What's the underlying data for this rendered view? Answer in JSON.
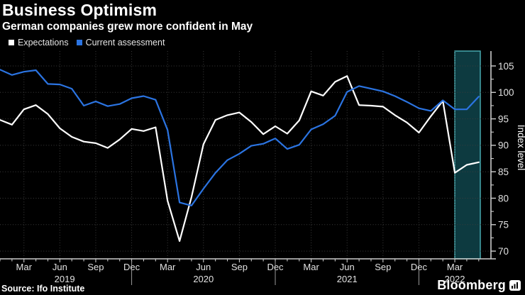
{
  "header": {
    "title": "Business Optimism",
    "subtitle": "German companies grew more confident in May"
  },
  "legend": [
    {
      "label": "Expectations",
      "color": "#ffffff"
    },
    {
      "label": "Current assessment",
      "color": "#2b74e2"
    }
  ],
  "source": "Source: Ifo Institute",
  "brand": {
    "name": "Bloomberg",
    "icon": "bar-chart-logo-icon"
  },
  "chart_data": {
    "type": "line",
    "title": "Business Optimism",
    "subtitle": "German companies grew more confident in May",
    "xlabel": "",
    "ylabel": "Index level",
    "ylim": [
      68,
      108
    ],
    "yticks": [
      70,
      75,
      80,
      85,
      90,
      95,
      100,
      105
    ],
    "grid": "dotted horizontal and vertical",
    "legend_position": "top-left",
    "months": [
      "2019-01",
      "2019-02",
      "2019-03",
      "2019-04",
      "2019-05",
      "2019-06",
      "2019-07",
      "2019-08",
      "2019-09",
      "2019-10",
      "2019-11",
      "2019-12",
      "2020-01",
      "2020-02",
      "2020-03",
      "2020-04",
      "2020-05",
      "2020-06",
      "2020-07",
      "2020-08",
      "2020-09",
      "2020-10",
      "2020-11",
      "2020-12",
      "2021-01",
      "2021-02",
      "2021-03",
      "2021-04",
      "2021-05",
      "2021-06",
      "2021-07",
      "2021-08",
      "2021-09",
      "2021-10",
      "2021-11",
      "2021-12",
      "2022-01",
      "2022-02",
      "2022-03",
      "2022-04",
      "2022-05"
    ],
    "series": [
      {
        "name": "Expectations",
        "color": "#ffffff",
        "values": [
          94.8,
          93.9,
          96.8,
          97.6,
          95.9,
          93.2,
          91.6,
          90.7,
          90.4,
          89.5,
          91.1,
          93.1,
          92.7,
          93.4,
          79.5,
          71.9,
          80.2,
          90.2,
          94.8,
          95.7,
          96.2,
          94.4,
          92.1,
          93.6,
          92.2,
          94.7,
          100.2,
          99.4,
          102.0,
          103.1,
          97.6,
          97.5,
          97.3,
          95.7,
          94.3,
          92.4,
          95.5,
          98.4,
          84.8,
          86.3,
          86.8
        ]
      },
      {
        "name": "Current assessment",
        "color": "#2b74e2",
        "values": [
          104.3,
          103.3,
          103.9,
          104.2,
          101.6,
          101.5,
          100.7,
          97.5,
          98.3,
          97.4,
          97.8,
          98.9,
          99.3,
          98.6,
          92.9,
          79.2,
          78.6,
          81.8,
          84.8,
          87.2,
          88.4,
          89.9,
          90.3,
          91.3,
          89.3,
          90.1,
          93.0,
          94.0,
          95.6,
          100.1,
          101.2,
          100.7,
          100.2,
          99.3,
          98.2,
          97.0,
          96.5,
          98.5,
          96.8,
          96.8,
          99.2
        ]
      }
    ],
    "xticks": [
      {
        "m": 2,
        "label": "Mar"
      },
      {
        "m": 5,
        "label": "Jun"
      },
      {
        "m": 8,
        "label": "Sep"
      },
      {
        "m": 11,
        "label": "Dec"
      },
      {
        "m": 14,
        "label": "Mar"
      },
      {
        "m": 17,
        "label": "Jun"
      },
      {
        "m": 20,
        "label": "Sep"
      },
      {
        "m": 23,
        "label": "Dec"
      },
      {
        "m": 26,
        "label": "Mar"
      },
      {
        "m": 29,
        "label": "Jun"
      },
      {
        "m": 32,
        "label": "Sep"
      },
      {
        "m": 35,
        "label": "Dec"
      },
      {
        "m": 38,
        "label": "Mar"
      }
    ],
    "year_labels": [
      {
        "m": 5.4,
        "label": "2019"
      },
      {
        "m": 17,
        "label": "2020"
      },
      {
        "m": 29,
        "label": "2021"
      },
      {
        "m": 38,
        "label": "2022"
      }
    ],
    "year_dividers": [
      11,
      23,
      35
    ],
    "highlight_region": {
      "from": "2022-03",
      "to": "2022-05",
      "from_index": 38,
      "to_index": 40,
      "fill": "#0d3a40",
      "edge": "#47a7ad"
    },
    "style": {
      "background": "#000000",
      "grid": "#3d3d3d",
      "axis": "#cccccc",
      "tick_label": "#e2e2e2",
      "divider": "#9a9a9a"
    }
  }
}
